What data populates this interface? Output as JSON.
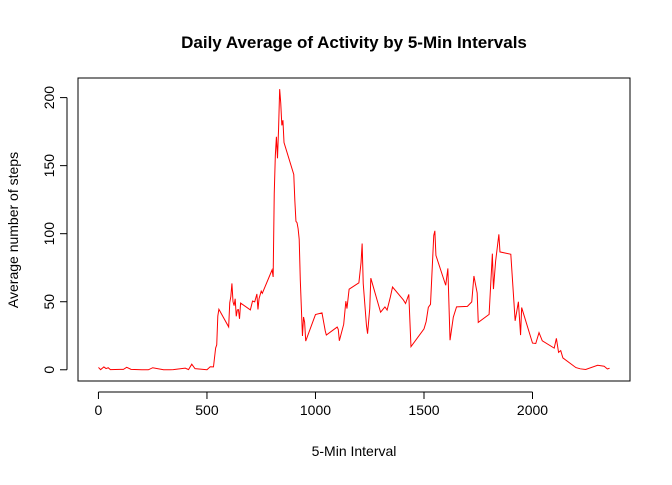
{
  "chart_data": {
    "type": "line",
    "title": "Daily Average of Activity by 5-Min Intervals",
    "x_label": "5-Min Interval",
    "y_label": "Average number of steps",
    "x": [
      0,
      10,
      25,
      35,
      45,
      55,
      100,
      115,
      130,
      150,
      200,
      230,
      250,
      300,
      330,
      345,
      400,
      415,
      430,
      445,
      500,
      515,
      530,
      540,
      545,
      550,
      555,
      600,
      605,
      610,
      615,
      620,
      625,
      630,
      635,
      640,
      645,
      650,
      655,
      700,
      710,
      720,
      730,
      735,
      740,
      750,
      755,
      800,
      805,
      810,
      815,
      820,
      825,
      830,
      835,
      840,
      845,
      850,
      855,
      900,
      905,
      910,
      915,
      920,
      925,
      930,
      935,
      940,
      945,
      950,
      955,
      1000,
      1030,
      1045,
      1050,
      1100,
      1105,
      1110,
      1130,
      1140,
      1145,
      1155,
      1200,
      1210,
      1215,
      1220,
      1235,
      1240,
      1250,
      1255,
      1300,
      1320,
      1330,
      1345,
      1355,
      1405,
      1415,
      1430,
      1440,
      1500,
      1510,
      1520,
      1530,
      1545,
      1550,
      1555,
      1600,
      1610,
      1620,
      1635,
      1650,
      1700,
      1720,
      1730,
      1745,
      1750,
      1800,
      1815,
      1820,
      1830,
      1845,
      1850,
      1900,
      1920,
      1935,
      1945,
      1950,
      2000,
      2015,
      2030,
      2045,
      2100,
      2110,
      2120,
      2130,
      2140,
      2200,
      2220,
      2245,
      2300,
      2330,
      2345,
      2355
    ],
    "series": [
      {
        "name": "steps",
        "color": "#ff0000",
        "values": [
          1.7,
          0.1,
          2.1,
          0.9,
          1.5,
          0.1,
          0.3,
          0.3,
          1.8,
          0.3,
          0,
          0,
          1.5,
          0,
          0,
          0.1,
          1.2,
          0.1,
          4.1,
          0.8,
          0,
          2.2,
          2.1,
          16,
          18.3,
          39.5,
          44.5,
          31.5,
          49.3,
          53.8,
          63.5,
          50,
          47.1,
          52.2,
          39.3,
          44,
          44.2,
          37.4,
          49,
          44,
          50.5,
          49.9,
          55.7,
          44.3,
          52.3,
          57.8,
          56.2,
          73.4,
          68.2,
          129.4,
          157.5,
          171.2,
          155.4,
          177.3,
          206.2,
          195.9,
          179.6,
          183.4,
          167,
          143.5,
          124,
          109.1,
          108.1,
          103.7,
          95.9,
          66.2,
          45.2,
          24.8,
          38.8,
          35,
          21.1,
          40.6,
          41.8,
          28.6,
          25.5,
          31.4,
          29.7,
          21.3,
          33.4,
          50.4,
          45,
          59.2,
          63.9,
          78.9,
          92.8,
          63.4,
          32.4,
          26.5,
          45,
          67.3,
          42.3,
          46.2,
          43.9,
          53.5,
          60.8,
          51.3,
          48.7,
          55.4,
          17,
          30,
          35.5,
          45.9,
          48.1,
          98.7,
          102.1,
          84,
          62.1,
          74.5,
          21.7,
          38.6,
          46.2,
          46.6,
          49.9,
          68.9,
          56.5,
          34.8,
          40.7,
          85.3,
          59.3,
          79.7,
          99.5,
          86.6,
          84.9,
          36,
          50,
          25.5,
          45.7,
          19.6,
          19.3,
          27.3,
          21.3,
          15.9,
          23.1,
          12.8,
          14.1,
          8.7,
          1.6,
          0.7,
          0.2,
          3.3,
          2.6,
          0.6,
          1.1
        ]
      }
    ],
    "xlim": [
      -94.2,
      2449.2
    ],
    "ylim": [
      -8.25,
      214.4
    ],
    "xticks": [
      0,
      500,
      1000,
      1500,
      2000
    ],
    "yticks": [
      0,
      50,
      100,
      150,
      200
    ]
  }
}
